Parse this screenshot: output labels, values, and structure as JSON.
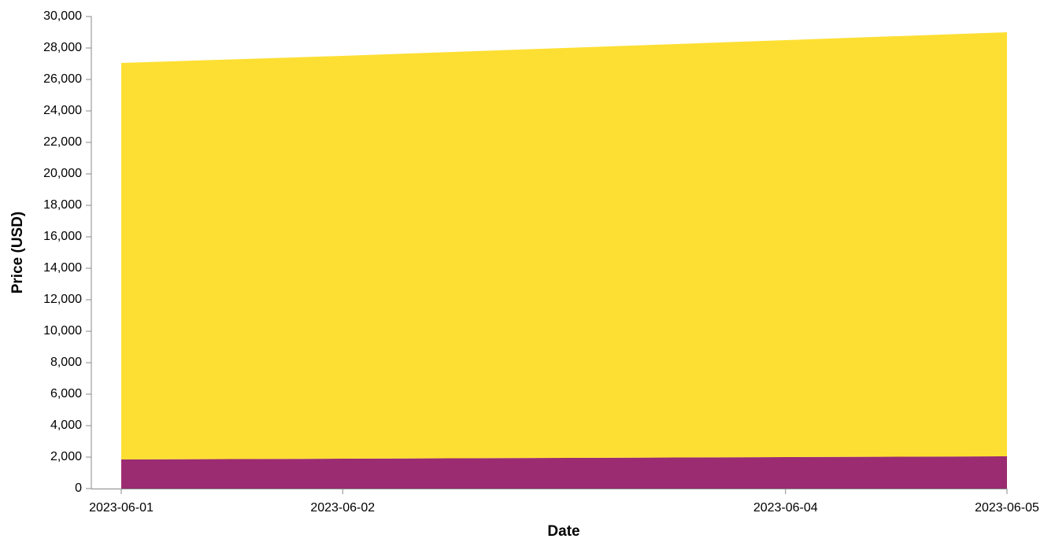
{
  "chart_data": {
    "type": "area",
    "stacked": true,
    "x": [
      "2023-06-01",
      "2023-06-02",
      "2023-06-04",
      "2023-06-05"
    ],
    "series": [
      {
        "color": "#9B2C72",
        "values": [
          1850,
          1900,
          2000,
          2050
        ]
      },
      {
        "color": "#FDDF33",
        "values": [
          25200,
          25600,
          26500,
          26950
        ]
      }
    ],
    "xlabel": "Date",
    "ylabel": "Price (USD)",
    "ylim": [
      0,
      30000
    ],
    "yticks": [
      0,
      2000,
      4000,
      6000,
      8000,
      10000,
      12000,
      14000,
      16000,
      18000,
      20000,
      22000,
      24000,
      26000,
      28000,
      30000
    ],
    "ytick_labels": [
      "0",
      "2,000",
      "4,000",
      "6,000",
      "8,000",
      "10,000",
      "12,000",
      "14,000",
      "16,000",
      "18,000",
      "20,000",
      "22,000",
      "24,000",
      "26,000",
      "28,000",
      "30,000"
    ],
    "grid": false,
    "legend": "none"
  }
}
